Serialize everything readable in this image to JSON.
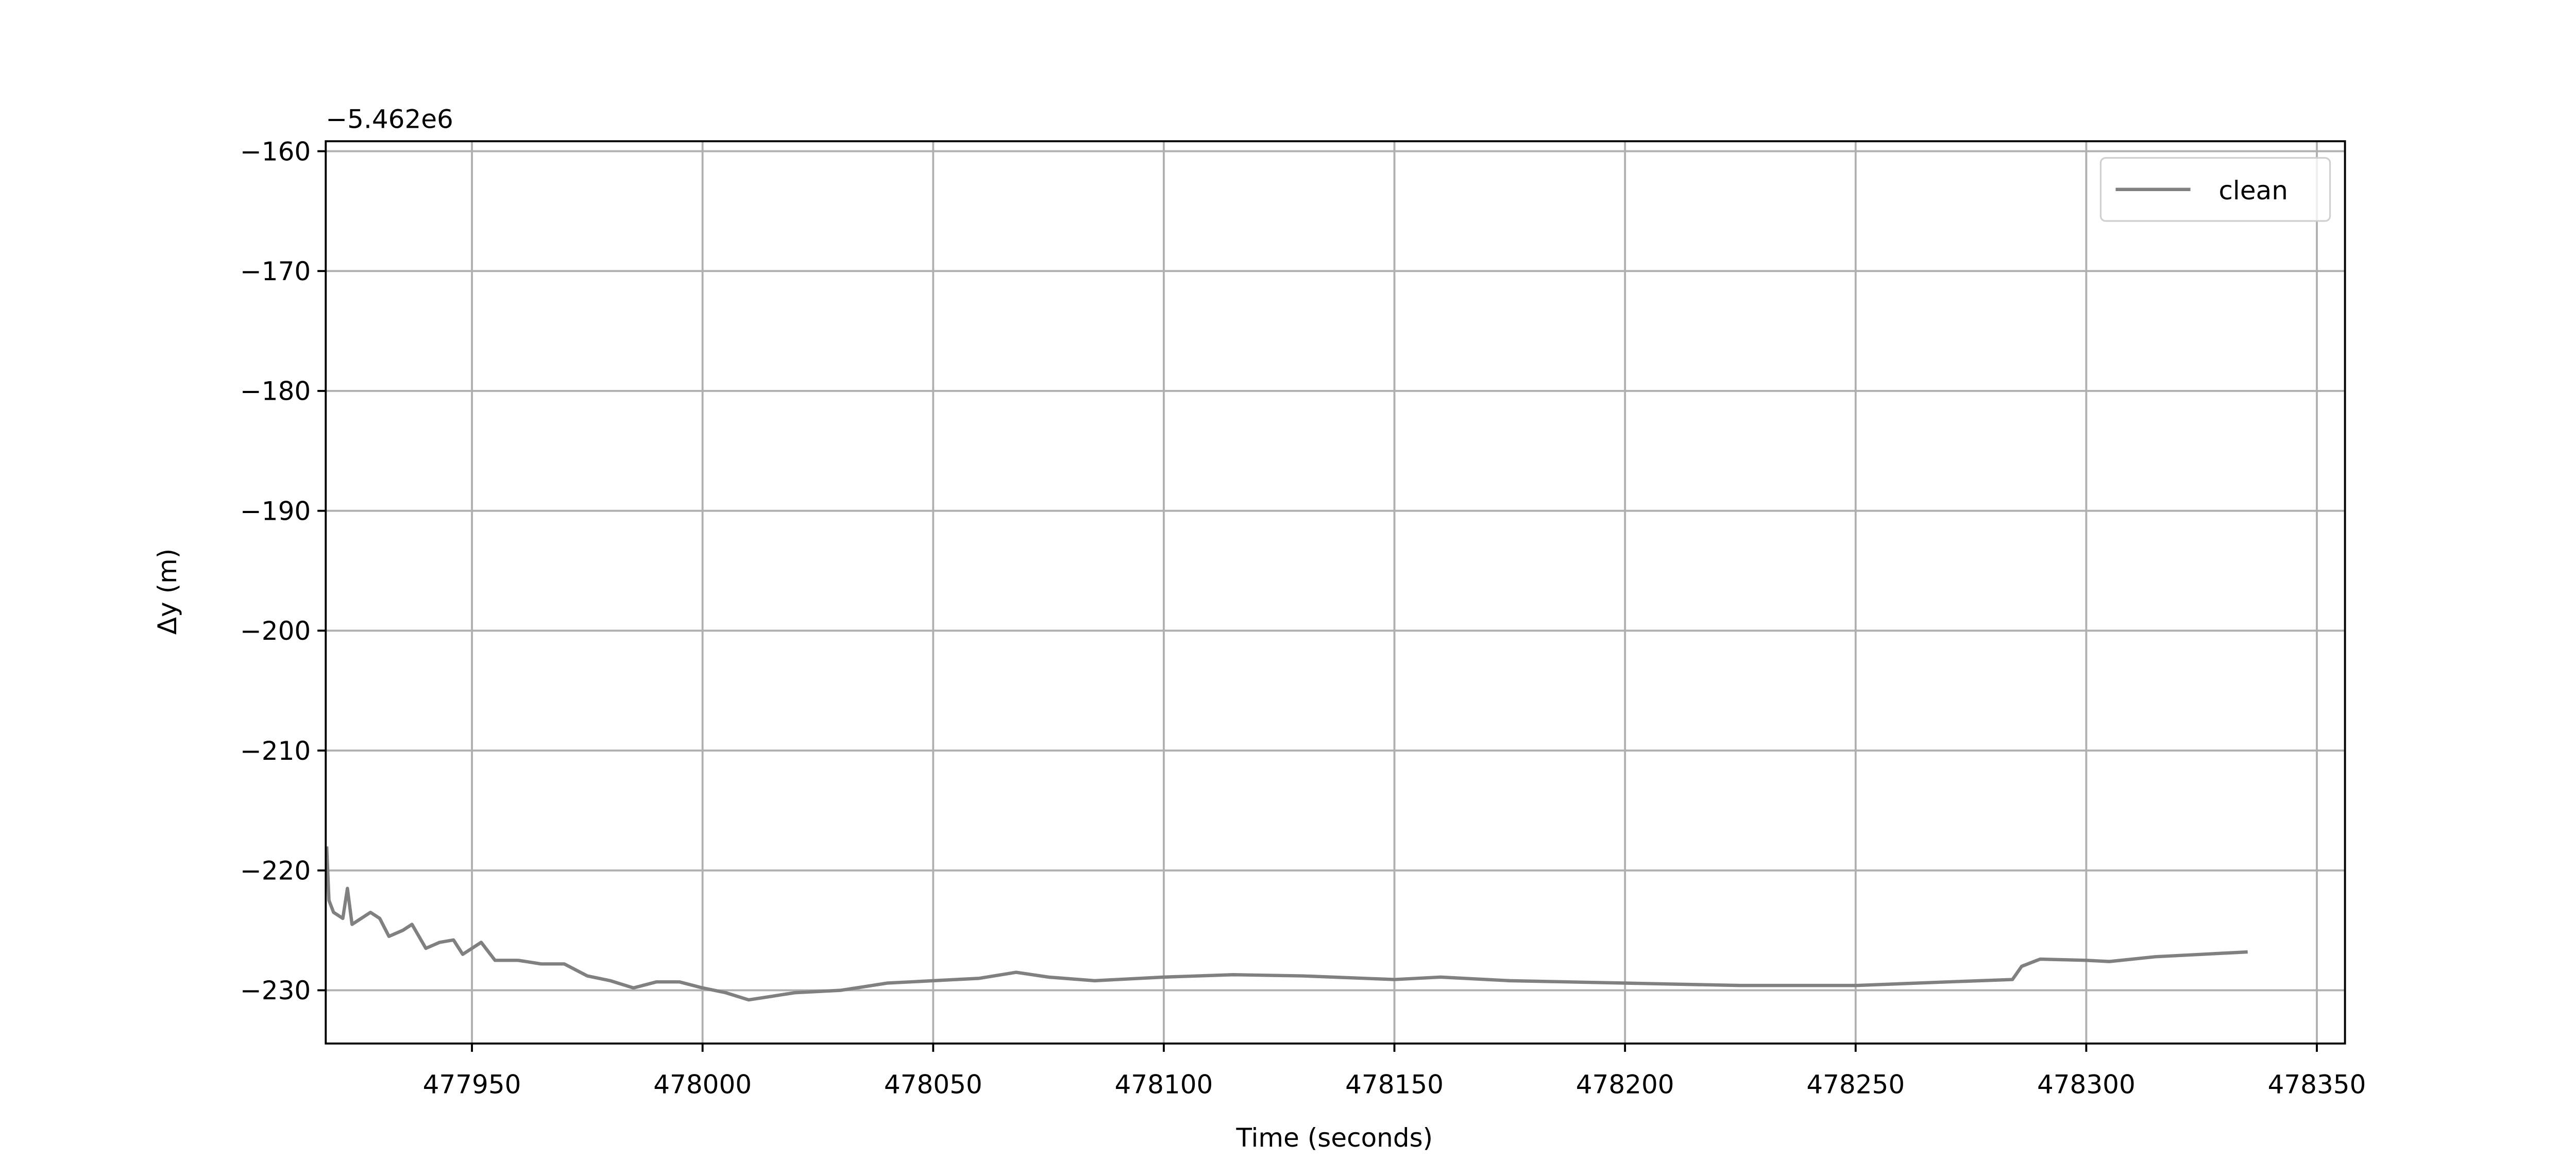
{
  "chart_data": {
    "type": "line",
    "xlabel": "Time (seconds)",
    "ylabel": "Δy (m)",
    "y_offset_text": "−5.462e6",
    "series": [
      {
        "name": "clean",
        "color": "#808080",
        "x": [
          477918.5,
          477919,
          477920,
          477922,
          477923,
          477924,
          477926,
          477928,
          477930,
          477932,
          477935,
          477937,
          477940,
          477943,
          477946,
          477948,
          477952,
          477955,
          477960,
          477965,
          477970,
          477975,
          477980,
          477985,
          477990,
          477995,
          478000,
          478005,
          478010,
          478015,
          478020,
          478030,
          478035,
          478040,
          478050,
          478060,
          478068,
          478075,
          478085,
          478100,
          478115,
          478130,
          478150,
          478160,
          478175,
          478200,
          478225,
          478250,
          478270,
          478284,
          478286,
          478290,
          478300,
          478305,
          478315,
          478325,
          478335
        ],
        "values": [
          -218,
          -222.5,
          -223.5,
          -224,
          -221.5,
          -224.5,
          -224,
          -223.5,
          -224,
          -225.5,
          -225,
          -224.5,
          -226.5,
          -226,
          -225.8,
          -227,
          -226,
          -227.5,
          -227.5,
          -227.8,
          -227.8,
          -228.8,
          -229.2,
          -229.8,
          -229.3,
          -229.3,
          -229.8,
          -230.2,
          -230.8,
          -230.5,
          -230.2,
          -230,
          -229.7,
          -229.4,
          -229.2,
          -229,
          -228.5,
          -228.9,
          -229.2,
          -228.9,
          -228.7,
          -228.8,
          -229.1,
          -228.9,
          -229.2,
          -229.4,
          -229.6,
          -229.6,
          -229.3,
          -229.1,
          -228,
          -227.4,
          -227.5,
          -227.6,
          -227.2,
          -227,
          -226.8
        ]
      }
    ],
    "xlim": [
      477918.3,
      478356.1
    ],
    "xticks": [
      477950,
      478000,
      478050,
      478100,
      478150,
      478200,
      478250,
      478300,
      478350
    ],
    "ylim": [
      -234.44,
      -159.17
    ],
    "yticks": [
      {
        "value": -230,
        "label": "−230"
      },
      {
        "value": -220,
        "label": "−220"
      },
      {
        "value": -210,
        "label": "−210"
      },
      {
        "value": -200,
        "label": "−200"
      },
      {
        "value": -190,
        "label": "−190"
      },
      {
        "value": -180,
        "label": "−180"
      },
      {
        "value": -170,
        "label": "−170"
      },
      {
        "value": -160,
        "label": "−160"
      }
    ],
    "grid": true,
    "legend": "upper right"
  }
}
